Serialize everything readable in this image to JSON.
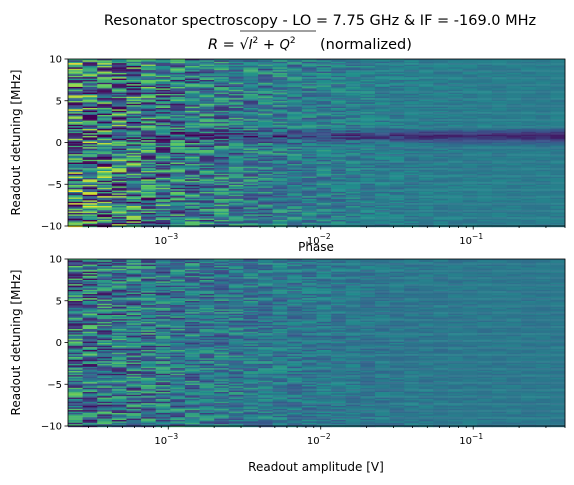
{
  "figure": {
    "title_line1": "Resonator spectroscopy - LO = 7.75 GHz & IF = -169.0 MHz",
    "title_line2_formula": "R = sqrt(I^2 + Q^2)",
    "title_line2_suffix": "(normalized)",
    "colormap": [
      "#440154",
      "#3b528b",
      "#21908d",
      "#5dc863",
      "#fde725"
    ]
  },
  "chart_data": [
    {
      "type": "heatmap",
      "panel": "top",
      "title": "R = sqrt(I^2 + Q^2) (normalized)",
      "xlabel": "",
      "ylabel": "Readout detuning [MHz]",
      "xscale": "log",
      "xlim": [
        0.00022,
        0.4
      ],
      "ylim": [
        -10,
        10
      ],
      "x_ticks": [
        {
          "value": 0.001,
          "base": "10",
          "exp": "−3"
        },
        {
          "value": 0.01,
          "base": "10",
          "exp": "−2"
        },
        {
          "value": 0.1,
          "base": "10",
          "exp": "−1"
        }
      ],
      "y_ticks": [
        {
          "value": 10,
          "label": "10"
        },
        {
          "value": 5,
          "label": "5"
        },
        {
          "value": 0,
          "label": "0"
        },
        {
          "value": -5,
          "label": "−5"
        },
        {
          "value": -10,
          "label": "−10"
        }
      ],
      "background_level": 0.42,
      "resonance_detuning_mhz": 0.8,
      "resonance_depth": 0.28,
      "noise_at_low_amplitude": 0.55
    },
    {
      "type": "heatmap",
      "panel": "bottom",
      "title": "Phase",
      "xlabel": "Readout amplitude [V]",
      "ylabel": "Readout detuning [MHz]",
      "xscale": "log",
      "xlim": [
        0.00022,
        0.4
      ],
      "ylim": [
        -10,
        10
      ],
      "x_ticks": [
        {
          "value": 0.001,
          "base": "10",
          "exp": "−3"
        },
        {
          "value": 0.01,
          "base": "10",
          "exp": "−2"
        },
        {
          "value": 0.1,
          "base": "10",
          "exp": "−1"
        }
      ],
      "y_ticks": [
        {
          "value": 10,
          "label": "10"
        },
        {
          "value": 5,
          "label": "5"
        },
        {
          "value": 0,
          "label": "0"
        },
        {
          "value": -5,
          "label": "−5"
        },
        {
          "value": -10,
          "label": "−10"
        }
      ],
      "background_level": 0.4,
      "resonance_detuning_mhz": null,
      "resonance_depth": 0,
      "noise_at_low_amplitude": 0.35
    }
  ]
}
